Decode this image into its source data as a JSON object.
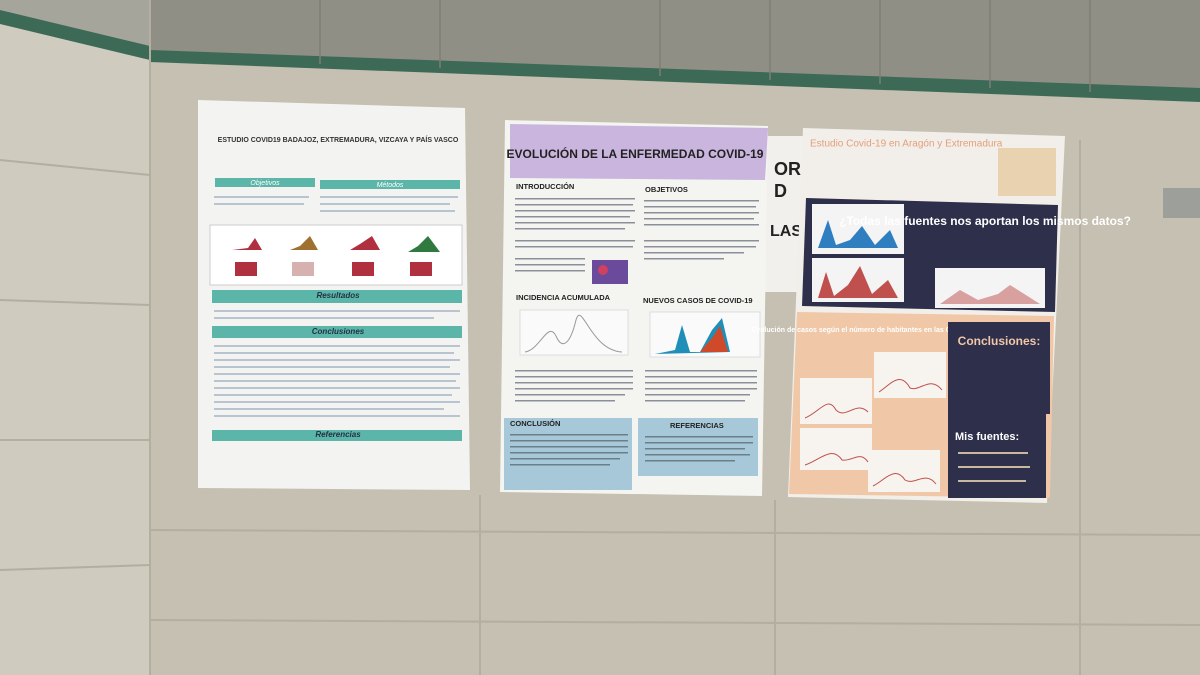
{
  "posters": [
    {
      "title": "ESTUDIO COVID19 BADAJOZ, EXTREMADURA, VIZCAYA Y PAÍS VASCO",
      "sections": [
        "Objetivos",
        "Métodos",
        "Resultados",
        "Conclusiones",
        "Referencias"
      ]
    },
    {
      "title": "EVOLUCIÓN DE LA ENFERMEDAD COVID-19",
      "sections": [
        "INTRODUCCIÓN",
        "OBJETIVOS",
        "INCIDENCIA ACUMULADA",
        "NUEVOS CASOS DE COVID-19",
        "CONCLUSIÓN",
        "REFERENCIAS"
      ]
    },
    {
      "title": "Estudio Covid-19 en Aragón y Extremadura",
      "sections": [
        "¿Todas las fuentes nos aportan los mismos datos?",
        "Evolución de casos según el número de habitantes en las CCAA y provincias",
        "Conclusiones:",
        "Mis fuentes:"
      ]
    }
  ],
  "sign": {
    "lines": [
      "OR",
      "D",
      "LASE"
    ]
  }
}
